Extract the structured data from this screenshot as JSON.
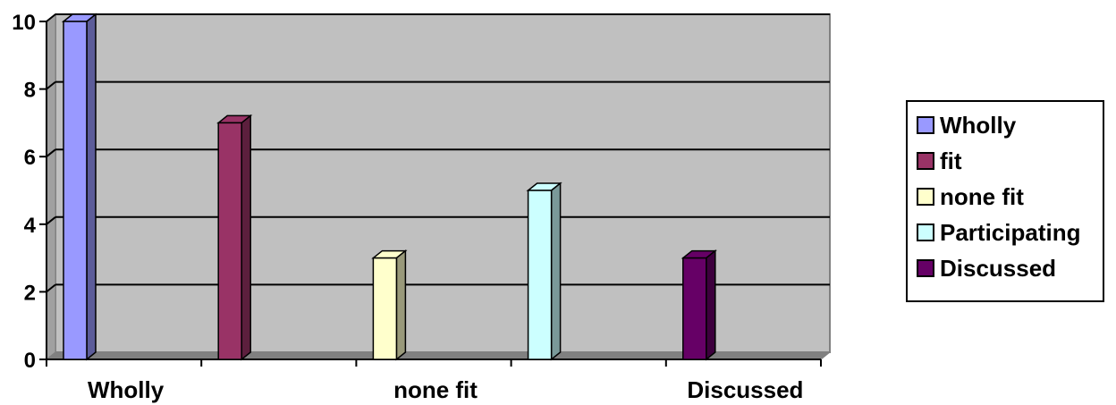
{
  "chart_data": {
    "type": "bar",
    "categories": [
      "Wholly",
      "fit",
      "none fit",
      "Participating",
      "Discussed"
    ],
    "x_tick_labels_shown": [
      "Wholly",
      "none fit",
      "Discussed"
    ],
    "values": [
      10,
      7,
      3,
      5,
      3
    ],
    "colors": [
      "#9999ff",
      "#993366",
      "#ffffcc",
      "#ccffff",
      "#660066"
    ],
    "yticks": [
      "0",
      "2",
      "4",
      "6",
      "8",
      "10"
    ],
    "ylim": [
      0,
      10
    ],
    "grid": true,
    "legend_position": "right",
    "legend": [
      "Wholly",
      "fit",
      "none fit",
      "Participating",
      "Discussed"
    ],
    "plot_background": "#c0c0c0"
  }
}
